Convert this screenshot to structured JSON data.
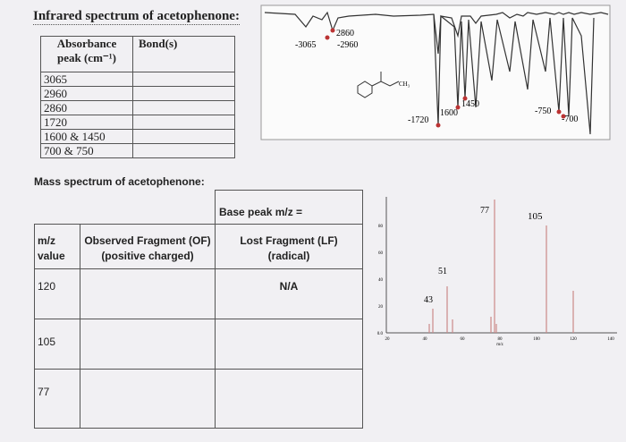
{
  "ir": {
    "title": "Infrared spectrum of acetophenone:",
    "table": {
      "headers": [
        [
          "Absorbance",
          "peak (cm⁻¹)"
        ],
        [
          "Bond(s)"
        ]
      ],
      "rows": [
        "3065",
        "2960",
        "2860",
        "1720",
        "1600 & 1450",
        "700 & 750"
      ]
    },
    "spectrum": {
      "structure_label": "CH₃",
      "labels": [
        "2860",
        "-3065",
        "-2960",
        "-1720",
        "1600",
        "1450",
        "-750",
        "-700"
      ]
    }
  },
  "mass": {
    "title": "Mass spectrum of acetophenone:",
    "table": {
      "base_peak": "Base peak m/z =",
      "headers": [
        [
          "m/z",
          "value"
        ],
        [
          "Observed Fragment (OF)",
          "(positive charged)"
        ],
        [
          "Lost Fragment (LF)",
          "(radical)"
        ]
      ],
      "rows": [
        {
          "mz": "120",
          "lf": "N/A"
        },
        {
          "mz": "105"
        },
        {
          "mz": "77"
        }
      ]
    },
    "spectrum": {
      "peak_labels": [
        "77",
        "105",
        "51",
        "43"
      ],
      "xticks": [
        "20",
        "40",
        "60",
        "80",
        "100",
        "120",
        "140"
      ],
      "yticks": [
        "0.0",
        "20",
        "40",
        "60",
        "80"
      ],
      "x_label": "m/z"
    }
  }
}
